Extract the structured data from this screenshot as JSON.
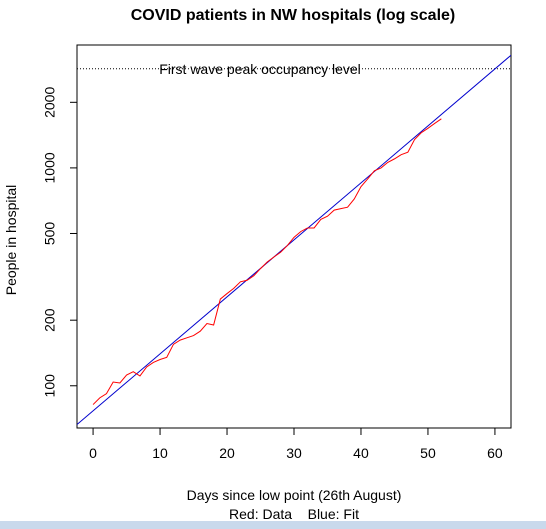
{
  "chart_data": {
    "type": "line",
    "title": "COVID patients in NW hospitals (log scale)",
    "x_label": "Days since low point (26th August)",
    "subtitle": "Red: Data    Blue: Fit",
    "y_label": "People in hospital",
    "log_y": true,
    "xlim": [
      -2.4,
      62.4
    ],
    "ylim": [
      64,
      3665
    ],
    "xticks": [
      0,
      10,
      20,
      30,
      40,
      50,
      60
    ],
    "yticks": [
      100,
      200,
      500,
      1000,
      2000
    ],
    "reference_line": {
      "label": "First wave peak occupancy level",
      "value": 2850,
      "color": "#000000"
    },
    "series": [
      {
        "name": "Data",
        "color": "#ff0000",
        "x": [
          0,
          1,
          2,
          3,
          4,
          5,
          6,
          7,
          8,
          9,
          10,
          11,
          12,
          13,
          14,
          15,
          16,
          17,
          18,
          19,
          20,
          21,
          22,
          23,
          24,
          25,
          26,
          27,
          28,
          29,
          30,
          31,
          32,
          33,
          34,
          35,
          36,
          37,
          38,
          39,
          40,
          41,
          42,
          43,
          44,
          45,
          46,
          47,
          48,
          49,
          50,
          51,
          52
        ],
        "values": [
          82,
          88,
          92,
          104,
          103,
          112,
          116,
          111,
          122,
          128,
          132,
          135,
          155,
          162,
          166,
          170,
          178,
          193,
          190,
          250,
          265,
          280,
          300,
          305,
          320,
          345,
          370,
          390,
          410,
          440,
          480,
          510,
          530,
          530,
          580,
          600,
          640,
          650,
          660,
          720,
          820,
          890,
          970,
          1000,
          1060,
          1100,
          1150,
          1180,
          1350,
          1450,
          1520,
          1600,
          1680
        ]
      },
      {
        "name": "Fit",
        "color": "#0000cd",
        "x": [
          -2.4,
          62.4
        ],
        "values": [
          66.4,
          3289
        ]
      }
    ]
  }
}
